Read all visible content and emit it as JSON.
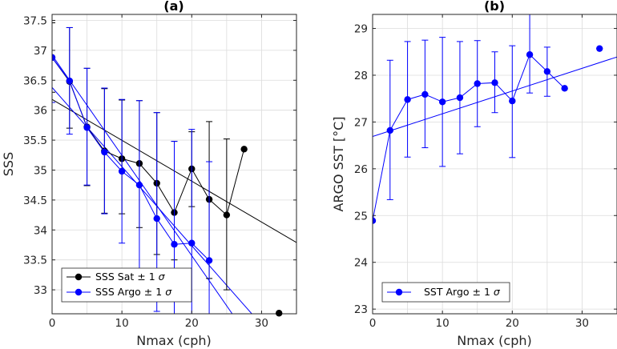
{
  "chart_data": [
    {
      "panel": "(a)",
      "type": "line",
      "title": "(a)",
      "xlabel": "Nmax (cph)",
      "ylabel": "SSS",
      "xlim": [
        0,
        35
      ],
      "ylim": [
        32.6,
        37.6
      ],
      "xticks": [
        "0",
        "10",
        "20",
        "30"
      ],
      "yticks": [
        "33",
        "33.5",
        "34",
        "34.5",
        "35",
        "35.5",
        "36",
        "36.5",
        "37",
        "37.5"
      ],
      "grid": true,
      "legend_position": "bottom-left",
      "series": [
        {
          "name": "SSS Sat ± 1 σ",
          "legend_label": "SSS Sat ± 1",
          "color": "#000000",
          "x": [
            0,
            2.5,
            5,
            7.5,
            10,
            12.5,
            15,
            17.5,
            20,
            22.5,
            25,
            27.5
          ],
          "y": [
            36.88,
            36.48,
            35.72,
            35.32,
            35.19,
            35.11,
            34.78,
            34.29,
            35.02,
            34.51,
            34.25,
            35.35
          ],
          "err_lo": [
            0.58,
            0.78,
            0.98,
            1.04,
            0.92,
            1.07,
            1.19,
            0.79,
            0.63,
            1.32,
            1.25,
            null
          ],
          "err_hi": [
            0.58,
            0.9,
            0.98,
            1.04,
            0.98,
            1.05,
            1.18,
            1.19,
            0.62,
            1.3,
            1.27,
            null
          ],
          "outlier": {
            "x": 32.5,
            "y": 32.61
          }
        },
        {
          "name": "SSS Argo ± 1 σ",
          "legend_label": "SSS Argo ± 1",
          "color": "#0000ff",
          "x": [
            0,
            2.5,
            5,
            7.5,
            10,
            12.5,
            15,
            17.5,
            20,
            22.5
          ],
          "y": [
            36.88,
            36.49,
            35.71,
            35.3,
            34.98,
            34.75,
            34.19,
            33.76,
            33.78,
            33.49
          ],
          "err_lo": [
            0.75,
            0.89,
            0.96,
            1.03,
            1.2,
            1.41,
            1.55,
            1.6,
            1.35,
            1.48
          ],
          "err_hi": [
            0.75,
            0.89,
            0.99,
            1.07,
            1.2,
            1.41,
            1.77,
            1.72,
            1.9,
            1.65
          ]
        }
      ],
      "fit_lines": [
        {
          "color": "#000000",
          "x": [
            0,
            35
          ],
          "y": [
            36.18,
            33.79
          ]
        },
        {
          "color": "#0000ff",
          "x": [
            0,
            28.6
          ],
          "y": [
            36.38,
            32.6
          ]
        },
        {
          "color": "#0000ff",
          "x": [
            0,
            25.8
          ],
          "y": [
            36.92,
            32.6
          ]
        }
      ]
    },
    {
      "panel": "(b)",
      "type": "line",
      "title": "(b)",
      "xlabel": "Nmax (cph)",
      "ylabel": "ARGO SST [°C]",
      "xlim": [
        0,
        35
      ],
      "ylim": [
        22.9,
        29.3
      ],
      "xticks": [
        "0",
        "10",
        "20",
        "30"
      ],
      "yticks": [
        "23",
        "24",
        "25",
        "26",
        "27",
        "28",
        "29"
      ],
      "grid": true,
      "legend_position": "bottom-left",
      "series": [
        {
          "name": "SST Argo ± 1 σ",
          "legend_label": "SST Argo ± 1",
          "color": "#0000ff",
          "x": [
            0,
            2.5,
            5,
            7.5,
            10,
            12.5,
            15,
            17.5,
            20,
            22.5,
            25,
            27.5
          ],
          "y": [
            24.89,
            26.82,
            27.48,
            27.59,
            27.43,
            27.52,
            27.82,
            27.84,
            27.45,
            28.44,
            28.08,
            27.72
          ],
          "err_lo": [
            null,
            1.48,
            1.23,
            1.14,
            1.38,
            1.2,
            0.92,
            0.64,
            1.21,
            0.82,
            0.53,
            null
          ],
          "err_hi": [
            null,
            1.5,
            1.24,
            1.16,
            1.38,
            1.2,
            0.92,
            0.66,
            1.18,
            0.86,
            0.52,
            null
          ],
          "outlier": {
            "x": 32.5,
            "y": 28.57
          }
        }
      ],
      "fit_lines": [
        {
          "color": "#0000ff",
          "x": [
            0,
            35
          ],
          "y": [
            26.69,
            28.39
          ]
        }
      ]
    }
  ]
}
